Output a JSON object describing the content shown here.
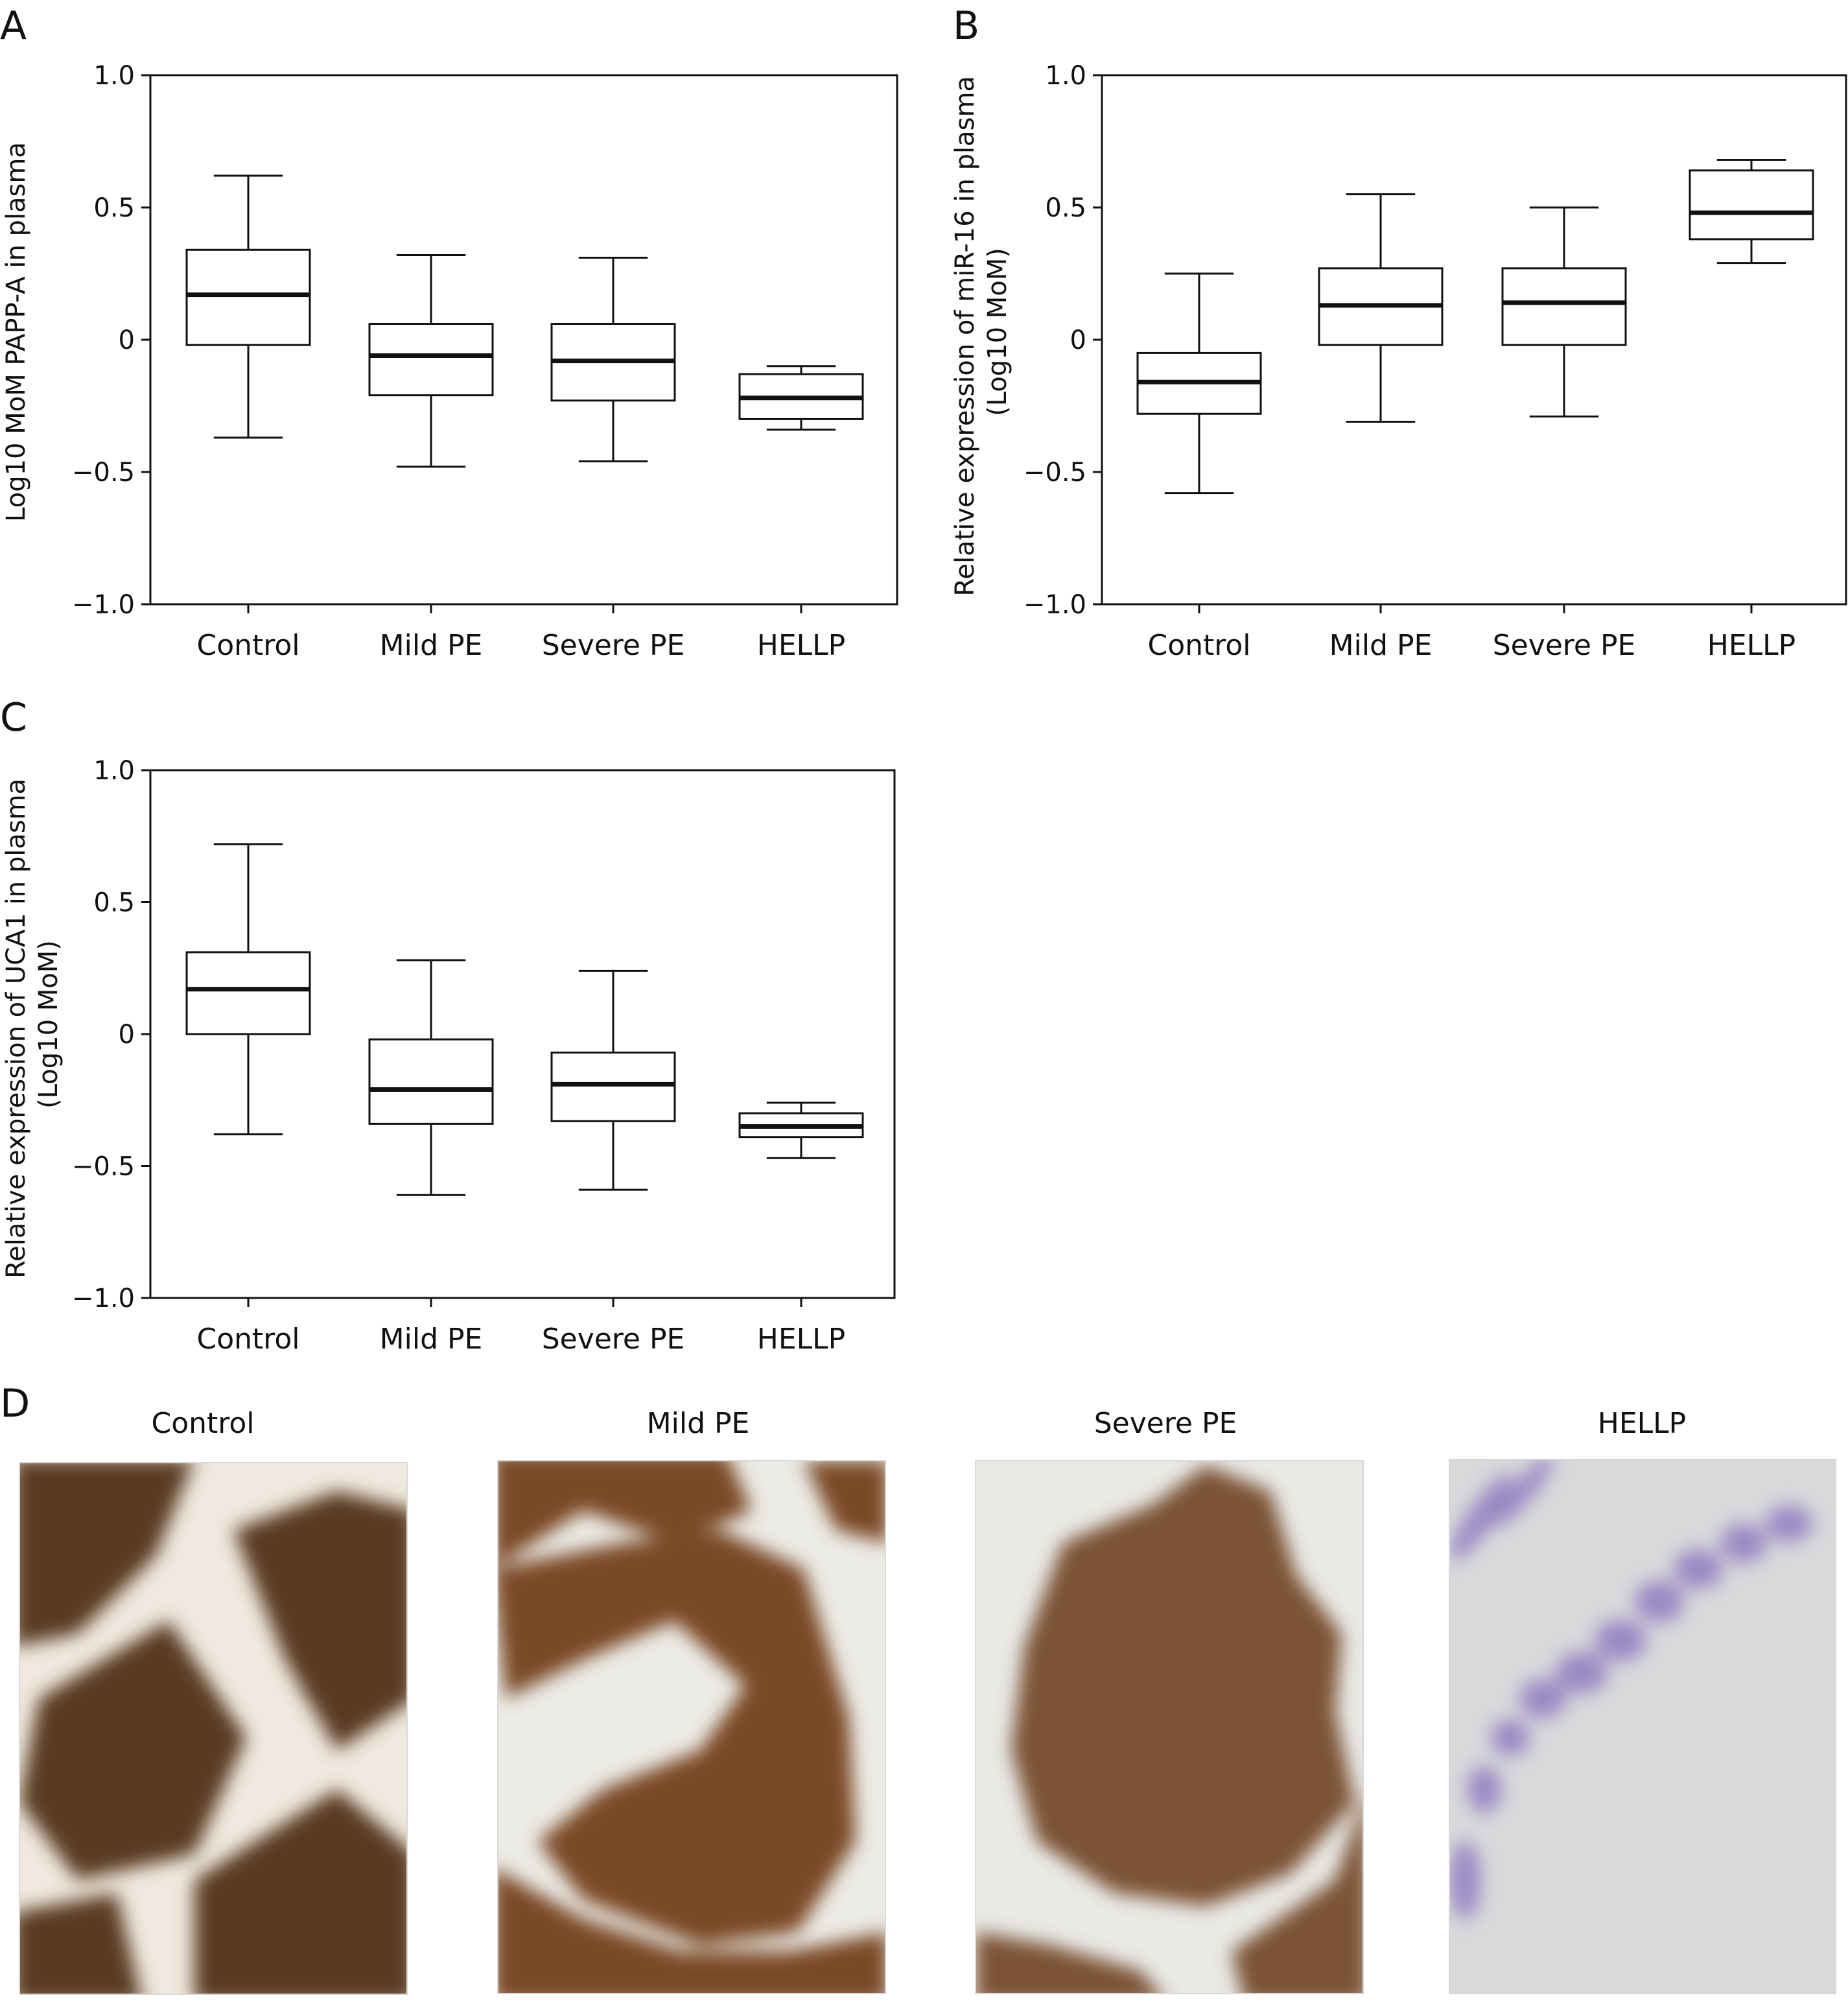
{
  "chart_data": [
    {
      "panel": "A",
      "type": "box",
      "ylabel": "Log10 MoM PAPP-A in plasma",
      "ylim": [
        -1.0,
        1.0
      ],
      "yticks": [
        1.0,
        0.5,
        0,
        -0.5,
        -1.0
      ],
      "ytick_labels": [
        "1.0",
        "0.5",
        "0",
        "−0.5",
        "−1.0"
      ],
      "categories": [
        "Control",
        "Mild PE",
        "Severe PE",
        "HELLP"
      ],
      "boxes": [
        {
          "min": -0.37,
          "q1": -0.02,
          "median": 0.17,
          "q3": 0.34,
          "max": 0.62
        },
        {
          "min": -0.48,
          "q1": -0.21,
          "median": -0.06,
          "q3": 0.06,
          "max": 0.32
        },
        {
          "min": -0.46,
          "q1": -0.23,
          "median": -0.08,
          "q3": 0.06,
          "max": 0.31
        },
        {
          "min": -0.34,
          "q1": -0.3,
          "median": -0.22,
          "q3": -0.13,
          "max": -0.1
        }
      ]
    },
    {
      "panel": "B",
      "type": "box",
      "ylabel": "Relative expression of miR-16 in plasma\n(Log10 MoM)",
      "ylim": [
        -1.0,
        1.0
      ],
      "yticks": [
        1.0,
        0.5,
        0,
        -0.5,
        -1.0
      ],
      "ytick_labels": [
        "1.0",
        "0.5",
        "0",
        "−0.5",
        "−1.0"
      ],
      "categories": [
        "Control",
        "Mild PE",
        "Severe PE",
        "HELLP"
      ],
      "boxes": [
        {
          "min": -0.58,
          "q1": -0.28,
          "median": -0.16,
          "q3": -0.05,
          "max": 0.25
        },
        {
          "min": -0.31,
          "q1": -0.02,
          "median": 0.13,
          "q3": 0.27,
          "max": 0.55
        },
        {
          "min": -0.29,
          "q1": -0.02,
          "median": 0.14,
          "q3": 0.27,
          "max": 0.5
        },
        {
          "min": 0.29,
          "q1": 0.38,
          "median": 0.48,
          "q3": 0.64,
          "max": 0.68
        }
      ]
    },
    {
      "panel": "C",
      "type": "box",
      "ylabel": "Relative expression of UCA1 in plasma\n(Log10 MoM)",
      "ylim": [
        -1.0,
        1.0
      ],
      "yticks": [
        1.0,
        0.5,
        0,
        -0.5,
        -1.0
      ],
      "ytick_labels": [
        "1.0",
        "0.5",
        "0",
        "−0.5",
        "−1.0"
      ],
      "categories": [
        "Control",
        "Mild PE",
        "Severe PE",
        "HELLP"
      ],
      "boxes": [
        {
          "min": -0.38,
          "q1": 0.0,
          "median": 0.17,
          "q3": 0.31,
          "max": 0.72
        },
        {
          "min": -0.61,
          "q1": -0.34,
          "median": -0.21,
          "q3": -0.02,
          "max": 0.28
        },
        {
          "min": -0.59,
          "q1": -0.33,
          "median": -0.19,
          "q3": -0.07,
          "max": 0.24
        },
        {
          "min": -0.47,
          "q1": -0.39,
          "median": -0.35,
          "q3": -0.3,
          "max": -0.26
        }
      ]
    }
  ],
  "panel_d": {
    "letter": "D",
    "images": [
      {
        "label": "Control",
        "stain": "#5a3a22",
        "bg": "#efe9df"
      },
      {
        "label": "Mild PE",
        "stain": "#7a4a25",
        "bg": "#ecebe6"
      },
      {
        "label": "Severe PE",
        "stain": "#7b5235",
        "bg": "#e9e9e6"
      },
      {
        "label": "HELLP",
        "stain": "#8e7cc0",
        "bg": "#d9d8db"
      }
    ]
  },
  "style": {
    "axis_color": "#111111",
    "box_fill": "#ffffff"
  }
}
